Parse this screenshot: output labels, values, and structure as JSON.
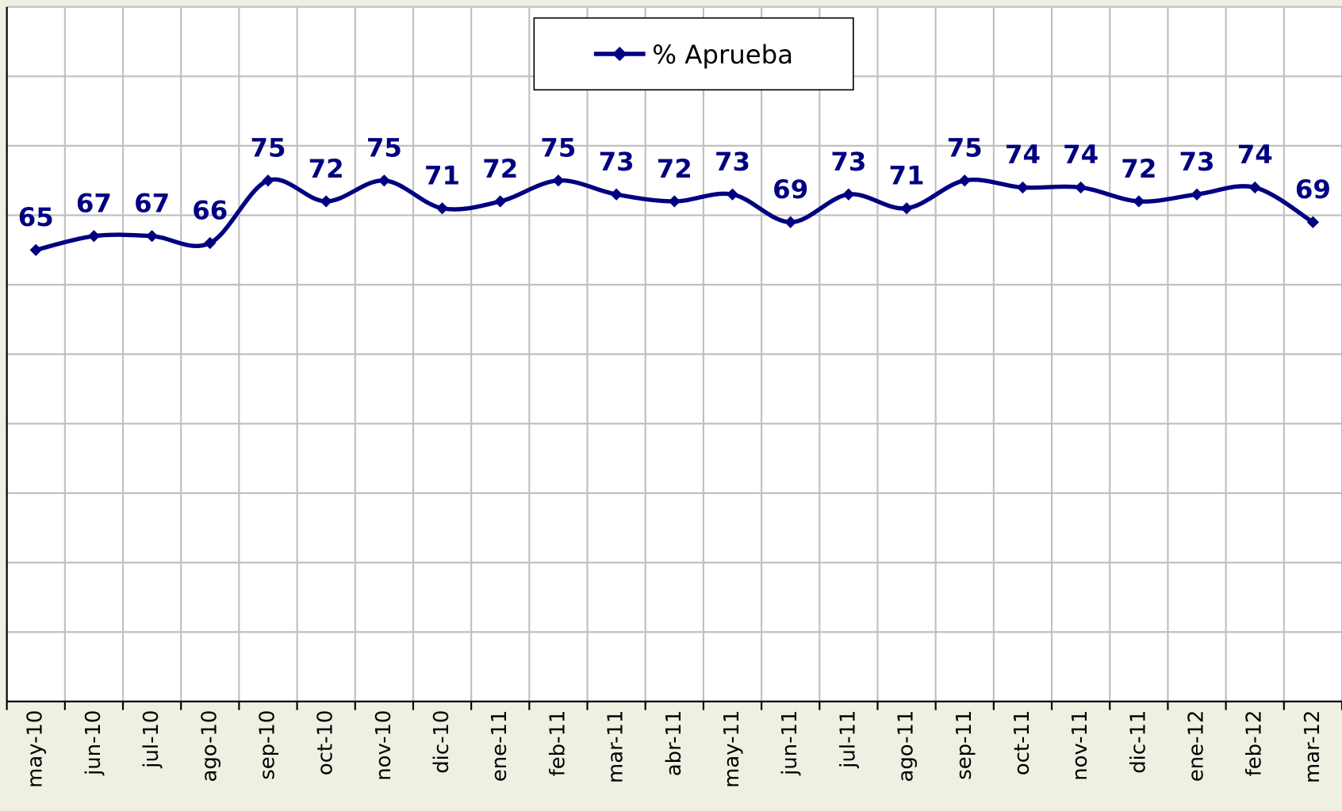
{
  "chart_data": {
    "type": "line",
    "categories": [
      "may-10",
      "jun-10",
      "jul-10",
      "ago-10",
      "sep-10",
      "oct-10",
      "nov-10",
      "dic-10",
      "ene-11",
      "feb-11",
      "mar-11",
      "abr-11",
      "may-11",
      "jun-11",
      "jul-11",
      "ago-11",
      "sep-11",
      "oct-11",
      "nov-11",
      "dic-11",
      "ene-12",
      "feb-12",
      "mar-12"
    ],
    "series": [
      {
        "name": "% Aprueba",
        "color": "#000080",
        "values": [
          65,
          67,
          67,
          66,
          75,
          72,
          75,
          71,
          72,
          75,
          73,
          72,
          73,
          69,
          73,
          71,
          75,
          74,
          74,
          72,
          73,
          74,
          69
        ]
      }
    ],
    "ylim": [
      0,
      100
    ],
    "yticks": [
      0,
      10,
      20,
      30,
      40,
      50,
      60,
      70,
      80,
      90,
      100
    ],
    "grid": true,
    "legend": "top"
  }
}
